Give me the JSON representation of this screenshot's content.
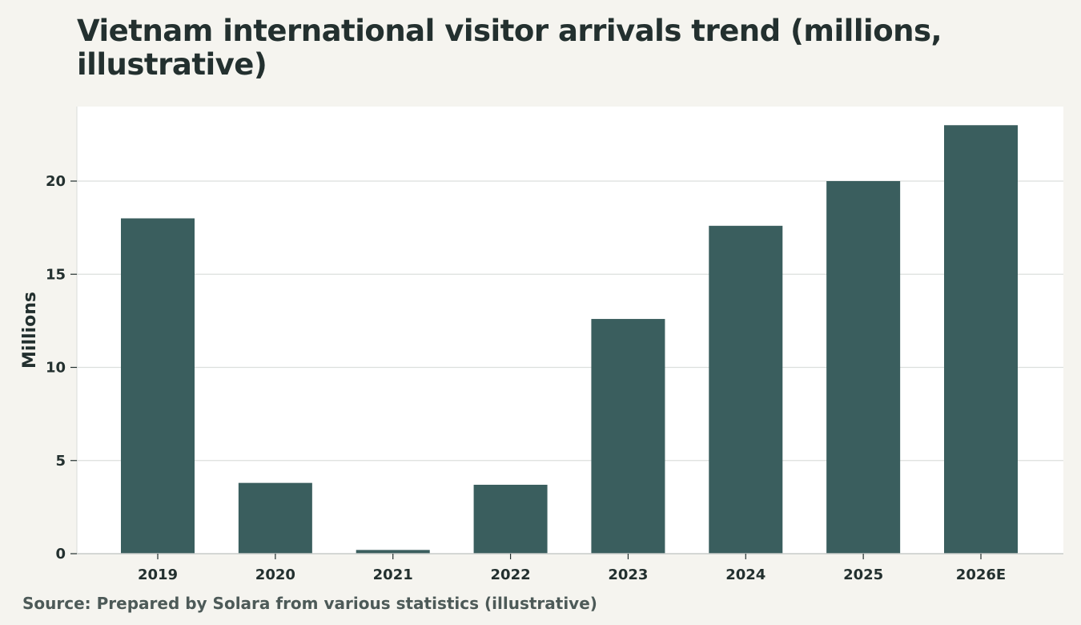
{
  "chart_data": {
    "type": "bar",
    "title": "Vietnam international visitor arrivals trend (millions, illustrative)",
    "xlabel": "",
    "ylabel": "Millions",
    "categories": [
      "2019",
      "2020",
      "2021",
      "2022",
      "2023",
      "2024",
      "2025",
      "2026E"
    ],
    "values": [
      18.0,
      3.8,
      0.2,
      3.7,
      12.6,
      17.6,
      20.0,
      23.0
    ],
    "ylim": [
      0,
      24
    ],
    "yticks": [
      0,
      5,
      10,
      15,
      20
    ],
    "grid": true,
    "legend": "none",
    "bar_color": "#3a5e5e",
    "source": "Source: Prepared by Solara from various statistics (illustrative)"
  }
}
